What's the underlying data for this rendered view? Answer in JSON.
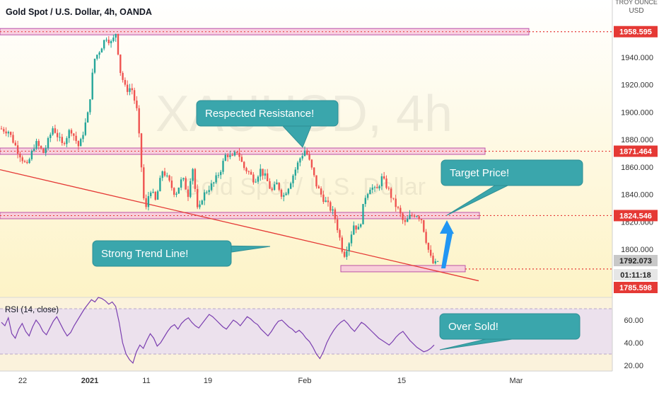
{
  "header": {
    "title": "Gold Spot / U.S. Dollar, 4h, OANDA",
    "currency_top": "TROY OUNCE",
    "currency": "USD"
  },
  "watermark": {
    "symbol": "XAUUSD, 4h",
    "name": "Gold Spot / U.S. Dollar"
  },
  "colors": {
    "background": "#fdf6e3",
    "up": "#26a69a",
    "down": "#ef5350",
    "level_fill": "#f8c8dc",
    "level_stroke": "#b03aa0",
    "level_dash": "#e53935",
    "trendline": "#e53935",
    "callout": "#3aa6ac",
    "arrow": "#2196f3",
    "rsi_line": "#7b3fb0",
    "rsi_band": "#e8dcf0"
  },
  "chart_data": {
    "type": "candlestick",
    "title": "Gold Spot / U.S. Dollar, 4h, OANDA",
    "ylim": [
      1777,
      1965
    ],
    "y_ticks": [
      1800,
      1820,
      1840,
      1860,
      1880,
      1900,
      1920,
      1940
    ],
    "x_ticks": [
      "22",
      "2021",
      "11",
      "19",
      "Feb",
      "15",
      "Mar"
    ],
    "price_tags": {
      "last": "1792.073",
      "countdown": "01:11:18",
      "close_level": "1785.598"
    },
    "levels": [
      {
        "price": 1958.595,
        "label": "1958.595"
      },
      {
        "price": 1871.464,
        "label": "1871.464"
      },
      {
        "price": 1824.546,
        "label": "1824.546"
      }
    ],
    "support_zone": {
      "price": 1785.598
    },
    "trendline": {
      "start_price": 1858,
      "end_price": 1777
    },
    "rsi": {
      "title": "RSI (14, close)",
      "y_ticks": [
        60,
        40,
        20
      ],
      "ylim": [
        15,
        82
      ],
      "upper_band": 70,
      "lower_band": 30,
      "values": [
        58,
        55,
        62,
        48,
        44,
        52,
        57,
        50,
        46,
        54,
        60,
        56,
        50,
        47,
        53,
        59,
        63,
        57,
        51,
        46,
        49,
        55,
        60,
        65,
        70,
        74,
        78,
        76,
        80,
        79,
        77,
        74,
        76,
        72,
        58,
        40,
        30,
        25,
        22,
        32,
        38,
        35,
        42,
        48,
        44,
        37,
        40,
        45,
        50,
        54,
        56,
        52,
        57,
        60,
        62,
        58,
        55,
        53,
        57,
        61,
        65,
        63,
        60,
        57,
        54,
        52,
        56,
        60,
        58,
        55,
        59,
        63,
        61,
        58,
        56,
        52,
        49,
        46,
        50,
        55,
        59,
        60,
        57,
        54,
        52,
        49,
        51,
        48,
        44,
        41,
        36,
        30,
        26,
        32,
        40,
        46,
        51,
        55,
        58,
        60,
        57,
        53,
        50,
        54,
        58,
        56,
        53,
        50,
        47,
        44,
        42,
        40,
        38,
        41,
        45,
        48,
        50,
        46,
        42,
        39,
        36,
        34,
        32,
        33,
        35,
        38
      ],
      "labels": {
        "v60": "60.00",
        "v40": "40.00",
        "v20": "20.00"
      }
    },
    "annotations": [
      {
        "text": "Respected Resistance!"
      },
      {
        "text": "Target Price!"
      },
      {
        "text": "Strong Trend Line!"
      },
      {
        "text": "Over Sold!"
      }
    ]
  }
}
